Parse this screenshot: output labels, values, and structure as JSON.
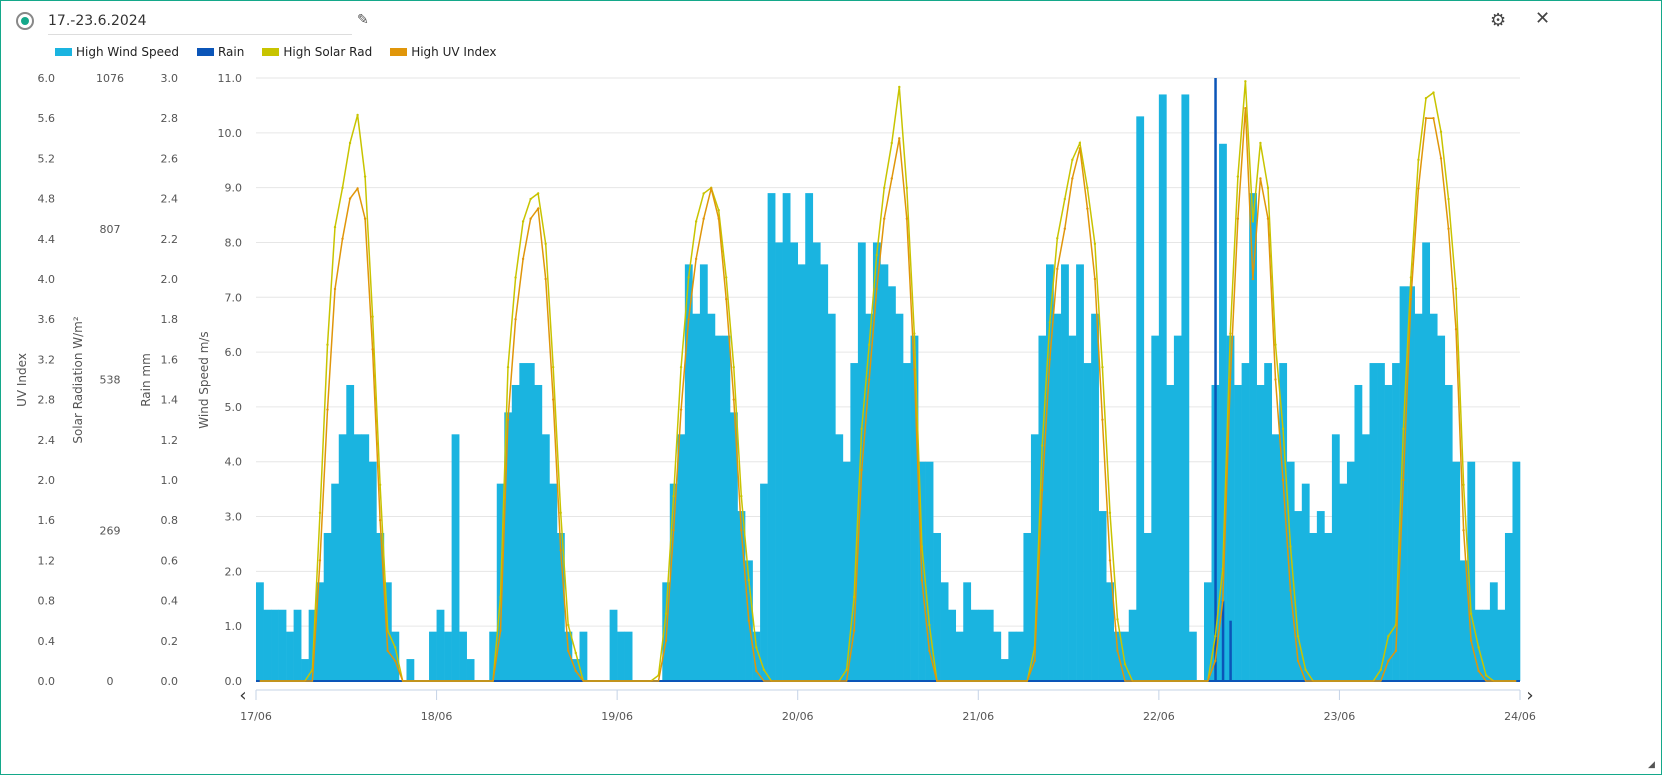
{
  "header": {
    "title": "17.-23.6.2024"
  },
  "legend": [
    {
      "label": "High Wind Speed",
      "color": "#1ab4e0"
    },
    {
      "label": "Rain",
      "color": "#0b55b8"
    },
    {
      "label": "High Solar Rad",
      "color": "#c8c400"
    },
    {
      "label": "High UV Index",
      "color": "#e0960a"
    }
  ],
  "chart_data": {
    "type": "bar+line",
    "x": {
      "ticks": [
        "17/06",
        "18/06",
        "19/06",
        "20/06",
        "21/06",
        "22/06",
        "23/06",
        "24/06"
      ],
      "resolution": "hourly"
    },
    "axes": {
      "uv": {
        "label": "UV Index",
        "range": [
          0,
          6
        ],
        "ticks": [
          "0.0",
          "0.4",
          "0.8",
          "1.2",
          "1.6",
          "2.0",
          "2.4",
          "2.8",
          "3.2",
          "3.6",
          "4.0",
          "4.4",
          "4.8",
          "5.2",
          "5.6",
          "6.0"
        ]
      },
      "solar": {
        "label": "Solar Radiation W/m²",
        "range": [
          0,
          1076
        ],
        "ticks": [
          "0",
          "269",
          "538",
          "807",
          "1076"
        ]
      },
      "rain": {
        "label": "Rain mm",
        "range": [
          0,
          3
        ],
        "ticks": [
          "0.0",
          "0.2",
          "0.4",
          "0.6",
          "0.8",
          "1.0",
          "1.2",
          "1.4",
          "1.6",
          "1.8",
          "2.0",
          "2.2",
          "2.4",
          "2.6",
          "2.8",
          "3.0"
        ]
      },
      "wind": {
        "label": "Wind Speed m/s",
        "range": [
          0,
          11
        ],
        "ticks": [
          "0.0",
          "1.0",
          "2.0",
          "3.0",
          "4.0",
          "5.0",
          "6.0",
          "7.0",
          "8.0",
          "9.0",
          "10.0",
          "11.0"
        ]
      }
    },
    "grid": true,
    "series": {
      "wind": [
        [
          1.8,
          1.3,
          1.3,
          1.3,
          0.9,
          1.3,
          0.4,
          1.3,
          1.8,
          2.7,
          3.6,
          4.5,
          5.4,
          4.5,
          4.5,
          4.0,
          2.7,
          1.8,
          0.9,
          0,
          0.4,
          0,
          0,
          0.9
        ],
        [
          1.3,
          0.9,
          4.5,
          0.9,
          0.4,
          0,
          0,
          0.9,
          3.6,
          4.9,
          5.4,
          5.8,
          5.8,
          5.4,
          4.5,
          3.6,
          2.7,
          0.9,
          0.4,
          0.9,
          0,
          0,
          0,
          1.3
        ],
        [
          0.9,
          0.9,
          0,
          0,
          0,
          0,
          1.8,
          3.6,
          4.5,
          7.6,
          6.7,
          7.6,
          6.7,
          6.3,
          6.3,
          4.9,
          3.1,
          2.2,
          0.9,
          3.6,
          8.9,
          8.0,
          8.9,
          8.0
        ],
        [
          7.6,
          8.9,
          8.0,
          7.6,
          6.7,
          4.5,
          4.0,
          5.8,
          8.0,
          6.7,
          8.0,
          7.6,
          7.2,
          6.7,
          5.8,
          6.3,
          4.0,
          4.0,
          2.7,
          1.8,
          1.3,
          0.9,
          1.8,
          1.3
        ],
        [
          1.3,
          1.3,
          0.9,
          0.4,
          0.9,
          0.9,
          2.7,
          4.5,
          6.3,
          7.6,
          6.7,
          7.6,
          6.3,
          7.6,
          5.8,
          6.7,
          3.1,
          1.8,
          0.9,
          0.9,
          1.3,
          10.3,
          2.7,
          6.3
        ],
        [
          10.7,
          5.4,
          6.3,
          10.7,
          0.9,
          0,
          1.8,
          5.4,
          9.8,
          6.3,
          5.4,
          5.8,
          8.9,
          5.4,
          5.8,
          4.5,
          5.8,
          4.0,
          3.1,
          3.6,
          2.7,
          3.1,
          2.7,
          4.5
        ],
        [
          3.6,
          4.0,
          5.4,
          4.5,
          5.8,
          5.8,
          5.4,
          5.8,
          7.2,
          7.2,
          6.7,
          8.0,
          6.7,
          6.3,
          5.4,
          4.0,
          2.2,
          4.0,
          1.3,
          1.3,
          1.8,
          1.3,
          2.7,
          4.0
        ]
      ],
      "rain": [
        [
          0,
          0,
          0,
          0,
          0,
          0,
          0,
          0,
          0,
          0,
          0,
          0,
          0,
          0,
          0,
          0,
          0,
          0,
          0,
          0,
          0,
          0,
          0,
          0
        ],
        [
          0,
          0,
          0,
          0,
          0,
          0,
          0,
          0,
          0,
          0,
          0,
          0,
          0,
          0,
          0,
          0,
          0,
          0,
          0,
          0,
          0,
          0,
          0,
          0
        ],
        [
          0,
          0,
          0,
          0,
          0,
          0,
          0,
          0,
          0,
          0,
          0,
          0,
          0,
          0,
          0,
          0,
          0,
          0,
          0,
          0,
          0,
          0,
          0,
          0
        ],
        [
          0,
          0,
          0,
          0,
          0,
          0,
          0,
          0,
          0,
          0,
          0,
          0,
          0,
          0,
          0,
          0,
          0,
          0,
          0,
          0,
          0,
          0,
          0,
          0
        ],
        [
          0,
          0,
          0,
          0,
          0,
          0,
          0,
          0,
          0,
          0,
          0,
          0,
          0,
          0,
          0,
          0,
          0,
          0,
          0,
          0,
          0,
          0,
          0,
          0
        ],
        [
          0,
          0,
          0,
          0,
          0,
          0,
          0,
          3.0,
          0.4,
          0.3,
          0,
          0,
          0,
          0,
          0,
          0,
          0,
          0,
          0,
          0,
          0,
          0,
          0,
          0
        ],
        [
          0,
          0,
          0,
          0,
          0,
          0,
          0,
          0,
          0,
          0,
          0,
          0,
          0,
          0,
          0,
          0,
          0,
          0,
          0,
          0,
          0,
          0,
          0,
          0
        ]
      ],
      "solar": [
        [
          0,
          0,
          0,
          0,
          0,
          0,
          0,
          20,
          300,
          600,
          810,
          880,
          960,
          1010,
          900,
          650,
          350,
          90,
          60,
          0,
          0,
          0,
          0,
          0
        ],
        [
          0,
          0,
          0,
          0,
          0,
          0,
          0,
          0,
          150,
          560,
          720,
          820,
          860,
          870,
          780,
          560,
          300,
          100,
          50,
          0,
          0,
          0,
          0,
          0
        ],
        [
          0,
          0,
          0,
          0,
          0,
          10,
          120,
          330,
          560,
          720,
          820,
          870,
          880,
          840,
          720,
          560,
          330,
          180,
          60,
          20,
          0,
          0,
          0,
          0
        ],
        [
          0,
          0,
          0,
          0,
          0,
          0,
          20,
          150,
          450,
          600,
          760,
          880,
          960,
          1060,
          880,
          620,
          240,
          100,
          0,
          0,
          0,
          0,
          0,
          0
        ],
        [
          0,
          0,
          0,
          0,
          0,
          0,
          0,
          60,
          420,
          640,
          790,
          860,
          930,
          960,
          880,
          780,
          560,
          300,
          110,
          30,
          0,
          0,
          0,
          0
        ],
        [
          0,
          0,
          0,
          0,
          0,
          0,
          0,
          80,
          200,
          620,
          900,
          1070,
          820,
          960,
          880,
          600,
          450,
          240,
          80,
          20,
          0,
          0,
          0,
          0
        ],
        [
          0,
          0,
          0,
          0,
          0,
          20,
          80,
          100,
          450,
          720,
          930,
          1040,
          1050,
          980,
          860,
          700,
          350,
          120,
          60,
          10,
          0,
          0,
          0,
          0
        ]
      ],
      "uv": [
        [
          0,
          0,
          0,
          0,
          0,
          0,
          0,
          0,
          1.2,
          2.7,
          3.9,
          4.4,
          4.8,
          4.9,
          4.6,
          3.3,
          1.6,
          0.3,
          0.2,
          0,
          0,
          0,
          0,
          0
        ],
        [
          0,
          0,
          0,
          0,
          0,
          0,
          0,
          0,
          0.5,
          2.6,
          3.6,
          4.2,
          4.6,
          4.7,
          4.0,
          2.8,
          1.3,
          0.3,
          0.1,
          0,
          0,
          0,
          0,
          0
        ],
        [
          0,
          0,
          0,
          0,
          0,
          0,
          0.4,
          1.5,
          2.7,
          3.6,
          4.2,
          4.6,
          4.9,
          4.6,
          3.8,
          2.8,
          1.5,
          0.6,
          0.1,
          0,
          0,
          0,
          0,
          0
        ],
        [
          0,
          0,
          0,
          0,
          0,
          0,
          0,
          0.5,
          2.1,
          3.0,
          3.9,
          4.6,
          5.0,
          5.4,
          4.6,
          3.1,
          1.0,
          0.3,
          0,
          0,
          0,
          0,
          0,
          0
        ],
        [
          0,
          0,
          0,
          0,
          0,
          0,
          0,
          0.2,
          1.9,
          3.2,
          4.1,
          4.5,
          5.0,
          5.3,
          4.7,
          4.0,
          2.6,
          1.2,
          0.3,
          0,
          0,
          0,
          0,
          0
        ],
        [
          0,
          0,
          0,
          0,
          0,
          0,
          0,
          0.2,
          0.8,
          3.0,
          4.6,
          5.7,
          4.0,
          5.0,
          4.6,
          3.0,
          2.0,
          0.9,
          0.2,
          0,
          0,
          0,
          0,
          0
        ],
        [
          0,
          0,
          0,
          0,
          0,
          0,
          0.2,
          0.3,
          2.0,
          3.8,
          4.9,
          5.6,
          5.6,
          5.2,
          4.5,
          3.5,
          1.5,
          0.4,
          0.1,
          0,
          0,
          0,
          0,
          0
        ]
      ]
    }
  }
}
